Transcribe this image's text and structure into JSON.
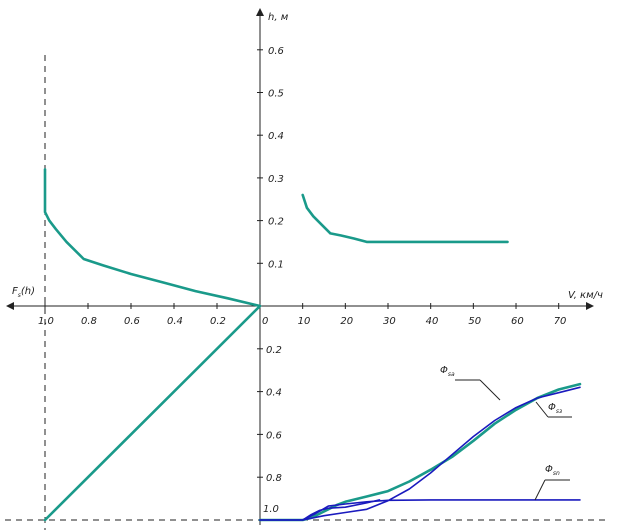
{
  "chart_data": [
    {
      "type": "line",
      "panel": "top-left",
      "xlabel": "F_s(h)",
      "ylabel": "h, м",
      "xlim": [
        1.0,
        0.0
      ],
      "ylim": [
        0,
        0.65
      ],
      "x_ticks": [
        "1.0",
        "0.8",
        "0.6",
        "0.4",
        "0.2"
      ],
      "y_ticks": [
        "0.1",
        "0.2",
        "0.3",
        "0.4",
        "0.5",
        "0.6"
      ],
      "series": [
        {
          "color": "#1a9a8a",
          "points": [
            [
              1.0,
              0.32
            ],
            [
              1.0,
              0.22
            ],
            [
              0.98,
              0.2
            ],
            [
              0.95,
              0.18
            ],
            [
              0.9,
              0.15
            ],
            [
              0.82,
              0.11
            ],
            [
              0.73,
              0.095
            ],
            [
              0.6,
              0.075
            ],
            [
              0.45,
              0.055
            ],
            [
              0.3,
              0.035
            ],
            [
              0.15,
              0.018
            ],
            [
              0.0,
              0.0
            ]
          ]
        }
      ]
    },
    {
      "type": "line",
      "panel": "top-right",
      "xlabel": "V, км/ч",
      "ylabel": "h, м",
      "xlim": [
        0,
        75
      ],
      "ylim": [
        0,
        0.65
      ],
      "x_ticks": [
        "0",
        "10",
        "20",
        "30",
        "40",
        "50",
        "60",
        "70"
      ],
      "series": [
        {
          "color": "#1a9a8a",
          "points": [
            [
              10,
              0.26
            ],
            [
              11,
              0.23
            ],
            [
              12.5,
              0.21
            ],
            [
              14.5,
              0.19
            ],
            [
              16.5,
              0.17
            ],
            [
              19,
              0.165
            ],
            [
              22,
              0.158
            ],
            [
              25,
              0.15
            ],
            [
              35,
              0.15
            ],
            [
              45,
              0.15
            ],
            [
              58,
              0.15
            ]
          ]
        }
      ]
    },
    {
      "type": "line",
      "panel": "bottom-right",
      "xlim": [
        0,
        75
      ],
      "ylim": [
        1.0,
        0.2
      ],
      "y_ticks": [
        "0.2",
        "0.4",
        "0.6",
        "0.8",
        "1.0"
      ],
      "series": [
        {
          "name": "Φ_sa",
          "color": "#1a9a8a",
          "points": [
            [
              0,
              1.0
            ],
            [
              10,
              1.0
            ],
            [
              12,
              0.99
            ],
            [
              14,
              0.97
            ],
            [
              16,
              0.95
            ],
            [
              18,
              0.93
            ],
            [
              20,
              0.915
            ],
            [
              25,
              0.89
            ],
            [
              30,
              0.865
            ],
            [
              35,
              0.82
            ],
            [
              40,
              0.765
            ],
            [
              45,
              0.705
            ],
            [
              50,
              0.63
            ],
            [
              55,
              0.55
            ],
            [
              60,
              0.485
            ],
            [
              65,
              0.43
            ],
            [
              70,
              0.39
            ],
            [
              75,
              0.365
            ]
          ]
        },
        {
          "name": "Φ_sз",
          "color": "#1a1abe",
          "points": [
            [
              0,
              1.0
            ],
            [
              10,
              1.0
            ],
            [
              15,
              0.98
            ],
            [
              20,
              0.965
            ],
            [
              25,
              0.95
            ],
            [
              30,
              0.91
            ],
            [
              35,
              0.855
            ],
            [
              40,
              0.78
            ],
            [
              45,
              0.695
            ],
            [
              50,
              0.61
            ],
            [
              55,
              0.535
            ],
            [
              60,
              0.475
            ],
            [
              65,
              0.43
            ],
            [
              70,
              0.405
            ],
            [
              75,
              0.38
            ]
          ]
        },
        {
          "name": "Φ_sn",
          "color": "#1a1abe",
          "points": [
            [
              0,
              1.0
            ],
            [
              10,
              1.0
            ],
            [
              13,
              0.97
            ],
            [
              16,
              0.935
            ],
            [
              20,
              0.925
            ],
            [
              25,
              0.915
            ],
            [
              30,
              0.908
            ],
            [
              40,
              0.906
            ],
            [
              50,
              0.906
            ],
            [
              60,
              0.906
            ],
            [
              75,
              0.906
            ]
          ]
        },
        {
          "color": "#1a1abe",
          "points": [
            [
              10,
              1.0
            ],
            [
              12,
              0.975
            ],
            [
              14,
              0.955
            ],
            [
              16,
              0.945
            ],
            [
              20,
              0.94
            ],
            [
              25,
              0.92
            ],
            [
              28,
              0.906
            ]
          ]
        }
      ]
    },
    {
      "type": "line",
      "panel": "bottom-left",
      "xlim": [
        1.0,
        0.0
      ],
      "ylim": [
        1.0,
        0.0
      ],
      "series": [
        {
          "color": "#1a9a8a",
          "points": [
            [
              1.0,
              1.0
            ],
            [
              0.0,
              0.0
            ]
          ]
        }
      ]
    }
  ],
  "labels": {
    "h_axis": "h, м",
    "v_axis": "V, км/ч",
    "f_axis_main": "F",
    "f_axis_sub": "s",
    "f_axis_tail": "(h)",
    "phi_sa": "Φ",
    "phi_sa_sub": "sa",
    "phi_sz": "Φ",
    "phi_sz_sub": "sз",
    "phi_sn": "Φ",
    "phi_sn_sub": "sn",
    "bottom_right_label_1": "1.0"
  }
}
